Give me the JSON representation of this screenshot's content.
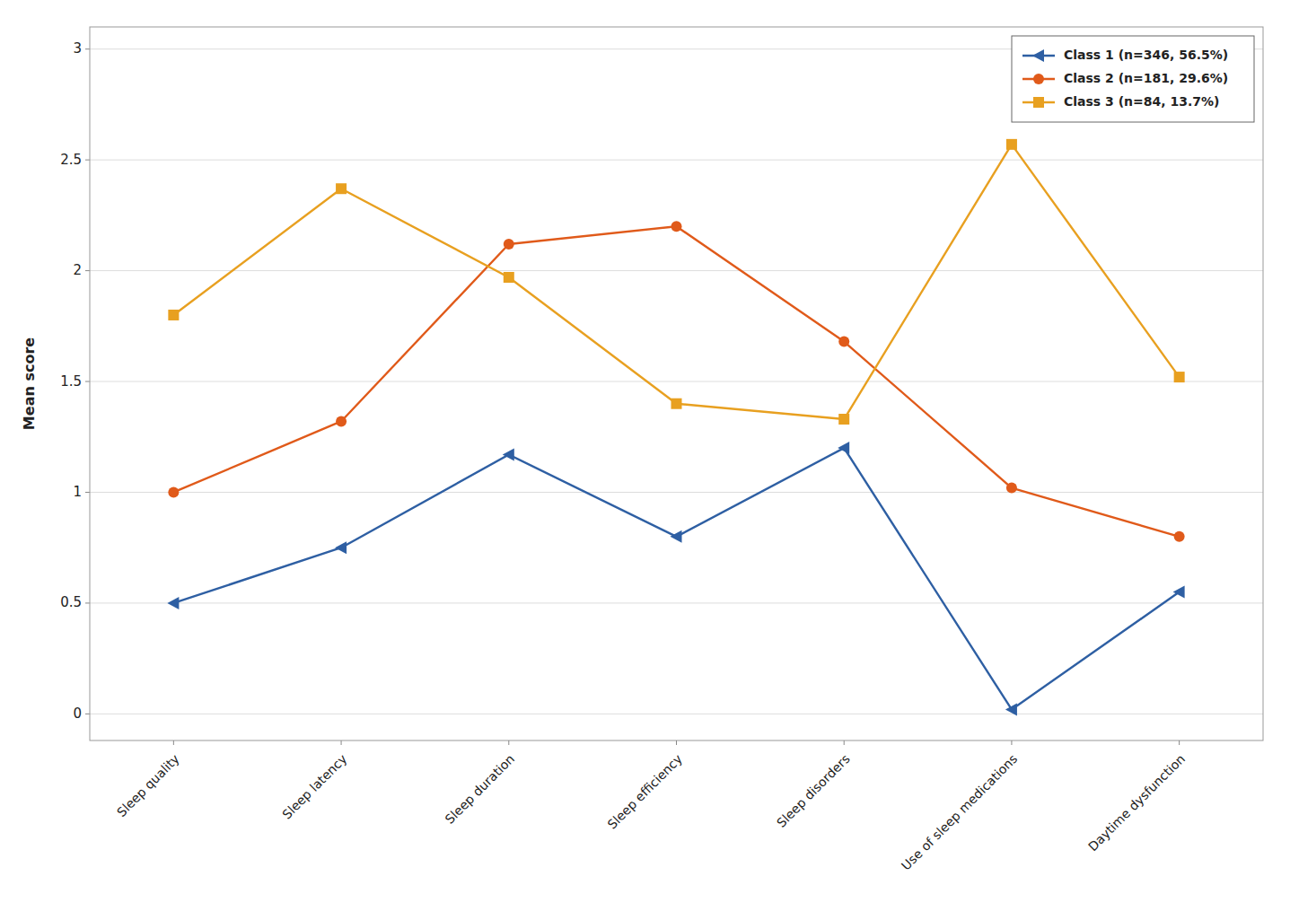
{
  "chart_data": {
    "type": "line",
    "ylabel": "Mean score",
    "categories": [
      "Sleep quality",
      "Sleep latency",
      "Sleep duration",
      "Sleep efficiency",
      "Sleep disorders",
      "Use of sleep medications",
      "Daytime dysfunction"
    ],
    "series": [
      {
        "name": "Class 1 (n=346, 56.5%)",
        "color": "#2e5fa3",
        "marker": "triangle-left",
        "values": [
          0.5,
          0.75,
          1.17,
          0.8,
          1.2,
          0.02,
          0.55
        ]
      },
      {
        "name": "Class 2 (n=181, 29.6%)",
        "color": "#e05a1a",
        "marker": "circle",
        "values": [
          1.0,
          1.32,
          2.12,
          2.2,
          1.68,
          1.02,
          0.8
        ]
      },
      {
        "name": "Class 3 (n=84, 13.7%)",
        "color": "#e8a020",
        "marker": "square",
        "values": [
          1.8,
          2.37,
          1.97,
          1.4,
          1.33,
          2.57,
          1.52
        ]
      }
    ],
    "ylim": [
      -0.12,
      3.1
    ],
    "yticks": [
      0,
      0.5,
      1,
      1.5,
      2,
      2.5,
      3
    ],
    "grid": true,
    "legend": "upper right"
  }
}
